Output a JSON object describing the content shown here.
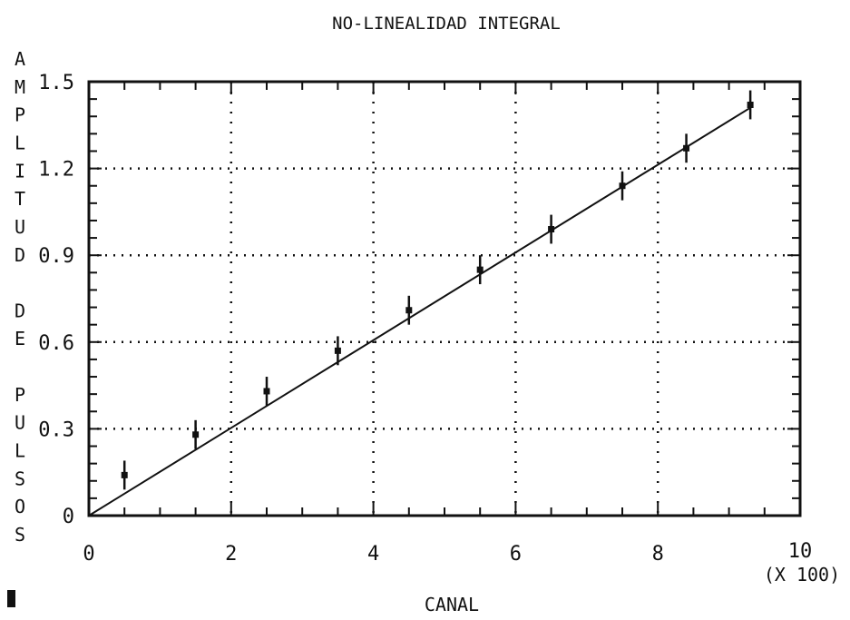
{
  "chart_data": {
    "type": "scatter",
    "title": "NO-LINEALIDAD INTEGRAL",
    "xlabel": "CANAL",
    "x_multiplier": "(X 100)",
    "ylabel": "AMPLITUD DE PULSOS",
    "xlim": [
      0,
      10
    ],
    "ylim": [
      0,
      1.5
    ],
    "x_tick_labels": [
      "0",
      "2",
      "4",
      "6",
      "8",
      "10"
    ],
    "y_tick_labels": [
      "0",
      "0.3",
      "0.6",
      "0.9",
      "1.2",
      "1.5"
    ],
    "grid": "dotted",
    "series": [
      {
        "points": [
          {
            "x": 0.5,
            "y": 0.14,
            "err": 0.05
          },
          {
            "x": 1.5,
            "y": 0.28,
            "err": 0.05
          },
          {
            "x": 2.5,
            "y": 0.43,
            "err": 0.05
          },
          {
            "x": 3.5,
            "y": 0.57,
            "err": 0.05
          },
          {
            "x": 4.5,
            "y": 0.71,
            "err": 0.05
          },
          {
            "x": 5.5,
            "y": 0.85,
            "err": 0.05
          },
          {
            "x": 6.5,
            "y": 0.99,
            "err": 0.05
          },
          {
            "x": 7.5,
            "y": 1.14,
            "err": 0.05
          },
          {
            "x": 8.4,
            "y": 1.27,
            "err": 0.05
          },
          {
            "x": 9.3,
            "y": 1.42,
            "err": 0.05
          }
        ]
      }
    ],
    "fit_line": {
      "x": [
        0,
        9.3
      ],
      "y": [
        0,
        1.41
      ]
    },
    "colors": {
      "ink": "#111111",
      "background": "#ffffff"
    }
  }
}
